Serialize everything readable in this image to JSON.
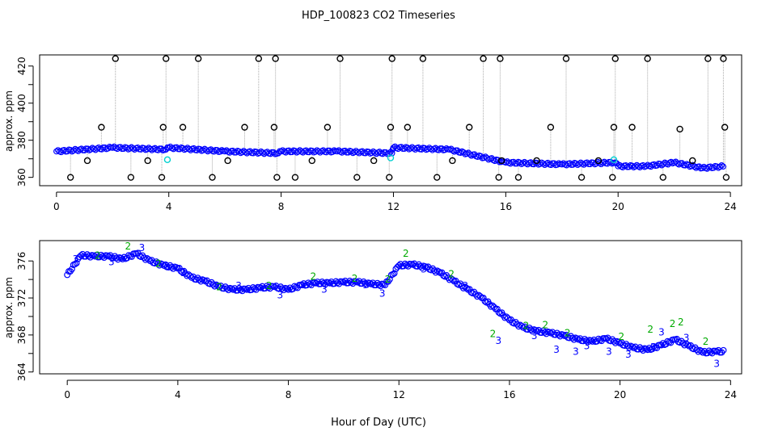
{
  "title": "HDP_100823  CO2 Timeseries",
  "xlabel": "Hour of Day (UTC)",
  "chart_data": [
    {
      "type": "scatter",
      "title": "",
      "xlabel": "Hour of Day (UTC)",
      "ylabel": "approx. ppm",
      "xlim": [
        -0.6,
        24.4
      ],
      "ylim": [
        355.5,
        426
      ],
      "xticks": [
        0,
        4,
        8,
        12,
        16,
        20,
        24
      ],
      "xtick_labels": [
        "0",
        "4",
        "8",
        "12",
        "16",
        "20",
        "24"
      ],
      "yticks": [
        360,
        370,
        380,
        390,
        400,
        410,
        420
      ],
      "ytick_labels": [
        "360",
        "",
        "380",
        "",
        "400",
        "",
        "420"
      ],
      "colors": {
        "series": "#0000ff",
        "outline": "#000000",
        "highlight": "#00d0d0",
        "connector": "#aaaaaa"
      },
      "series": [
        {
          "marker": "open-circle",
          "color": "#0000ff",
          "x": [
            0,
            2,
            3.9,
            4,
            6,
            7.9,
            8,
            10,
            11.95,
            12,
            14,
            16,
            18,
            19.9,
            20,
            21,
            22,
            23,
            23.8
          ],
          "y": [
            374,
            376,
            375,
            376,
            374,
            373,
            374,
            374,
            373,
            376,
            375,
            368,
            367,
            368,
            366,
            366,
            368,
            365,
            366
          ]
        },
        {
          "marker": "open-circle",
          "color": "#000000",
          "x": [
            0.5,
            1.1,
            1.6,
            2.1,
            2.65,
            3.25,
            3.75,
            3.8,
            3.9,
            4.5,
            5.05,
            5.55,
            6.1,
            6.7,
            7.2,
            7.75,
            7.8,
            7.85,
            8.5,
            9.1,
            9.65,
            10.1,
            10.7,
            11.3,
            11.85,
            11.9,
            11.95,
            12.5,
            13.05,
            13.55,
            14.1,
            14.7,
            15.2,
            15.75,
            15.8,
            15.85,
            16.45,
            17.1,
            17.6,
            18.15,
            18.7,
            19.3,
            19.8,
            19.85,
            19.9,
            20.5,
            21.05,
            21.6,
            22.2,
            22.65,
            23.2,
            23.75,
            23.8,
            23.85
          ],
          "y": [
            360,
            369,
            387,
            424,
            360,
            369,
            360,
            387,
            424,
            387,
            424,
            360,
            369,
            387,
            424,
            387,
            424,
            360,
            360,
            369,
            387,
            424,
            360,
            369,
            360,
            387,
            424,
            387,
            424,
            360,
            369,
            387,
            424,
            360,
            424,
            369,
            360,
            369,
            387,
            424,
            360,
            369,
            360,
            387,
            424,
            387,
            424,
            360,
            386,
            369,
            424,
            424,
            387,
            360
          ]
        }
      ]
    },
    {
      "type": "scatter",
      "title": "",
      "xlabel": "Hour of Day (UTC)",
      "ylabel": "approx. ppm",
      "xlim": [
        -1,
        24.4
      ],
      "ylim": [
        363.8,
        378.2
      ],
      "xticks": [
        0,
        4,
        8,
        12,
        16,
        20,
        24
      ],
      "xtick_labels": [
        "0",
        "4",
        "8",
        "12",
        "16",
        "20",
        "24"
      ],
      "yticks": [
        364,
        366,
        368,
        370,
        372,
        374,
        376
      ],
      "ytick_labels": [
        "364",
        "",
        "368",
        "",
        "372",
        "",
        "376"
      ],
      "colors": {
        "series_1": "#0000ff",
        "series_2": "#00aa00",
        "series_3": "#0000ff"
      },
      "series": [
        {
          "name": "1",
          "marker": "open-circle",
          "color": "#0000ff",
          "x": [
            0,
            0.5,
            1,
            1.5,
            2,
            2.5,
            3,
            3.5,
            4,
            4.5,
            5,
            5.5,
            6,
            6.5,
            7,
            7.5,
            8,
            8.5,
            9,
            9.5,
            10,
            10.5,
            11,
            11.5,
            12,
            12.5,
            13,
            13.5,
            14,
            14.5,
            15,
            15.5,
            16,
            16.5,
            17,
            17.5,
            18,
            18.5,
            19,
            19.5,
            20,
            20.5,
            21,
            21.5,
            22,
            22.5,
            23,
            23.5,
            23.8
          ],
          "y": [
            374.5,
            376.6,
            376.5,
            376.5,
            376.2,
            376.8,
            376,
            375.5,
            375.2,
            374.2,
            373.8,
            373.2,
            372.9,
            372.9,
            373.1,
            373.2,
            372.9,
            373.4,
            373.6,
            373.6,
            373.7,
            373.7,
            373.5,
            373.4,
            375.5,
            375.6,
            375.3,
            374.7,
            373.8,
            372.9,
            372,
            370.8,
            369.6,
            368.8,
            368.4,
            368.2,
            367.9,
            367.5,
            367.3,
            367.6,
            367.1,
            366.6,
            366.4,
            366.9,
            367.5,
            366.8,
            366.1,
            366.2,
            366.2
          ]
        },
        {
          "name": "2",
          "marker": "label",
          "color": "#00aa00",
          "x": [
            1.1,
            2.2,
            3.3,
            5.5,
            7.3,
            8.9,
            10.4,
            11.6,
            12.25,
            13.9,
            15.4,
            16.6,
            17.3,
            18.1,
            20.05,
            21.1,
            21.9,
            22.2,
            23.1
          ],
          "y": [
            376.6,
            377.6,
            375.7,
            373.2,
            373.3,
            374.3,
            374.1,
            374,
            376.8,
            374.6,
            368.1,
            369,
            369.1,
            368.2,
            367.8,
            368.6,
            369.2,
            369.4,
            367.3
          ]
        },
        {
          "name": "3",
          "marker": "label",
          "color": "#0000ff",
          "x": [
            0.3,
            1.6,
            2.7,
            3.6,
            4.2,
            6.2,
            7.7,
            9.3,
            10.8,
            11.4,
            12.9,
            14.4,
            15.6,
            16.9,
            17.7,
            18.4,
            18.8,
            19.6,
            20.3,
            21.2,
            21.5,
            22.4,
            23.5
          ],
          "y": [
            376.2,
            375.9,
            377.4,
            375.4,
            374.7,
            373.3,
            372.3,
            372.9,
            373.4,
            372.5,
            375.1,
            373.3,
            367.4,
            367.9,
            366.4,
            366.2,
            366.8,
            366.2,
            365.9,
            366.7,
            368.3,
            367.7,
            364.9
          ]
        }
      ]
    }
  ]
}
